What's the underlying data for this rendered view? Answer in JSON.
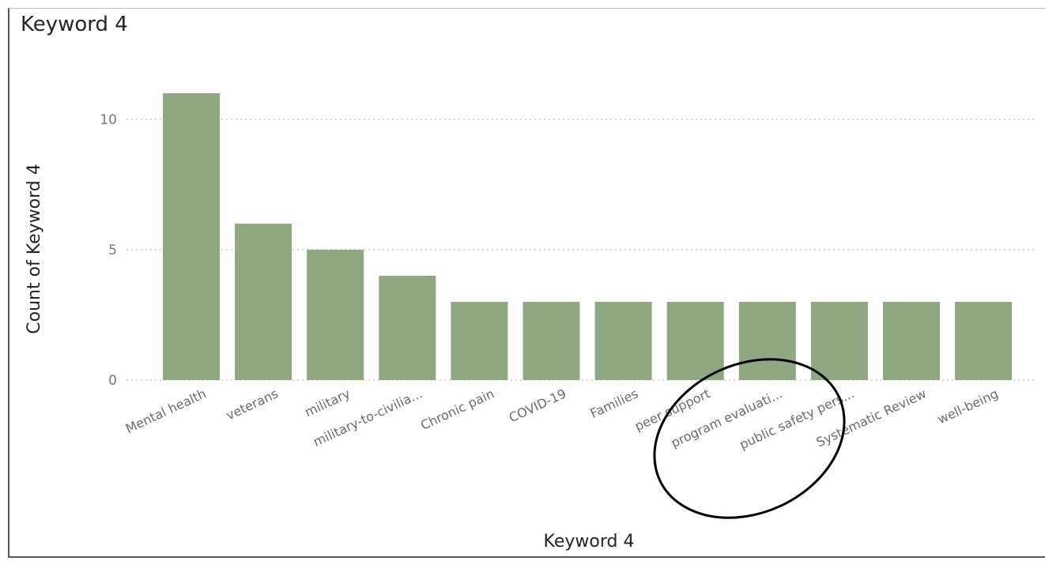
{
  "visual": {
    "title": "Keyword 4"
  },
  "chart_data": {
    "type": "bar",
    "title": "Keyword 4",
    "xlabel": "Keyword 4",
    "ylabel": "Count of Keyword 4",
    "categories": [
      "Mental health",
      "veterans",
      "military",
      "military-to-civilia...",
      "Chronic pain",
      "COVID-19",
      "Families",
      "peer support",
      "program evaluati...",
      "public safety pers...",
      "Systematic Review",
      "well-being"
    ],
    "values": [
      11,
      6,
      5,
      4,
      3,
      3,
      3,
      3,
      3,
      3,
      3,
      3
    ],
    "ylim": [
      0,
      11
    ],
    "yticks": [
      0,
      5,
      10
    ],
    "grid": true,
    "bar_color": "#8fa882",
    "annotation": {
      "shape": "ellipse",
      "color": "#000000",
      "encircled_categories": [
        "program evaluati...",
        "public safety pers..."
      ]
    }
  }
}
